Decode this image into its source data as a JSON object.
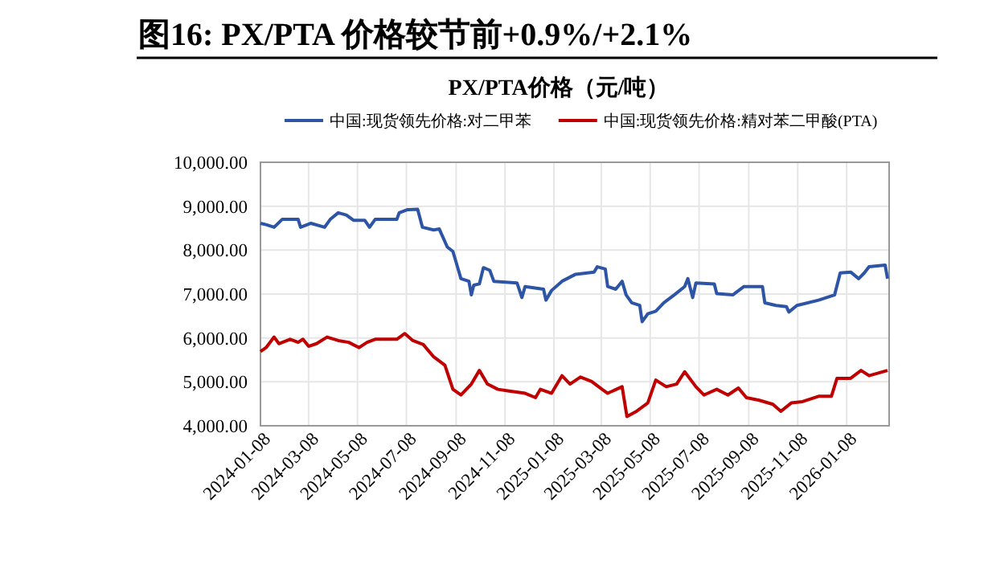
{
  "chart_data": {
    "type": "line",
    "title": "图16:  PX/PTA 价格较节前+0.9%/+2.1%",
    "subtitle": "PX/PTA价格（元/吨）",
    "xlim": [
      "2024-01-08",
      "2026-03-02"
    ],
    "xticks": [
      "2024-01-08",
      "2024-03-08",
      "2024-05-08",
      "2024-07-08",
      "2024-09-08",
      "2024-11-08",
      "2025-01-08",
      "2025-03-08",
      "2025-05-08",
      "2025-07-08",
      "2025-09-08",
      "2025-11-08",
      "2026-01-08"
    ],
    "ylim": [
      4000,
      10000
    ],
    "yticks": [
      {
        "value": 4000,
        "label": "4,000.00"
      },
      {
        "value": 5000,
        "label": "5,000.00"
      },
      {
        "value": 6000,
        "label": "6,000.00"
      },
      {
        "value": 7000,
        "label": "7,000.00"
      },
      {
        "value": 8000,
        "label": "8,000.00"
      },
      {
        "value": 9000,
        "label": "9,000.00"
      },
      {
        "value": 10000,
        "label": "10,000.00"
      }
    ],
    "grid": true,
    "legend": "top",
    "line_style": "solid",
    "marker": "none",
    "series": [
      {
        "name": "中国:现货领先价格:对二甲苯",
        "color": "#2e55a5",
        "x": [
          "2024-01-08",
          "2024-01-15",
          "2024-01-25",
          "2024-02-04",
          "2024-02-24",
          "2024-02-27",
          "2024-03-11",
          "2024-03-28",
          "2024-04-04",
          "2024-04-14",
          "2024-04-24",
          "2024-05-03",
          "2024-05-17",
          "2024-05-23",
          "2024-05-30",
          "2024-06-26",
          "2024-06-29",
          "2024-07-09",
          "2024-07-22",
          "2024-07-28",
          "2024-08-11",
          "2024-08-18",
          "2024-08-28",
          "2024-09-04",
          "2024-09-10",
          "2024-09-14",
          "2024-09-24",
          "2024-09-27",
          "2024-09-30",
          "2024-10-07",
          "2024-10-12",
          "2024-10-20",
          "2024-10-25",
          "2024-11-23",
          "2024-11-29",
          "2024-12-03",
          "2024-12-26",
          "2024-12-29",
          "2025-01-05",
          "2025-01-18",
          "2025-02-04",
          "2025-02-27",
          "2025-03-03",
          "2025-03-13",
          "2025-03-16",
          "2025-03-26",
          "2025-04-03",
          "2025-04-08",
          "2025-04-15",
          "2025-04-25",
          "2025-04-28",
          "2025-05-05",
          "2025-05-15",
          "2025-05-25",
          "2025-06-07",
          "2025-06-20",
          "2025-06-24",
          "2025-06-30",
          "2025-07-04",
          "2025-07-27",
          "2025-07-30",
          "2025-08-19",
          "2025-09-02",
          "2025-09-25",
          "2025-09-28",
          "2025-10-12",
          "2025-10-25",
          "2025-10-28",
          "2025-11-07",
          "2025-12-04",
          "2025-12-24",
          "2025-12-31",
          "2026-01-13",
          "2026-01-23",
          "2026-01-30",
          "2026-02-05",
          "2026-02-25",
          "2026-02-28"
        ],
        "values": [
          8610,
          8580,
          8520,
          8700,
          8700,
          8520,
          8610,
          8520,
          8700,
          8850,
          8800,
          8680,
          8680,
          8520,
          8700,
          8700,
          8850,
          8920,
          8930,
          8520,
          8460,
          8480,
          8070,
          7970,
          7600,
          7350,
          7290,
          6980,
          7200,
          7230,
          7600,
          7540,
          7290,
          7250,
          6920,
          7170,
          7110,
          6860,
          7080,
          7290,
          7450,
          7500,
          7620,
          7570,
          7170,
          7110,
          7290,
          6980,
          6800,
          6740,
          6370,
          6550,
          6610,
          6800,
          6980,
          7170,
          7350,
          6920,
          7250,
          7230,
          7010,
          6980,
          7170,
          7170,
          6800,
          6740,
          6710,
          6590,
          6740,
          6860,
          6980,
          7480,
          7500,
          7350,
          7480,
          7620,
          7660,
          7350
        ]
      },
      {
        "name": "中国:现货领先价格:精对苯二甲酸(PTA)",
        "color": "#c00000",
        "x": [
          "2024-01-08",
          "2024-01-15",
          "2024-01-25",
          "2024-01-31",
          "2024-02-14",
          "2024-02-24",
          "2024-03-01",
          "2024-03-08",
          "2024-03-18",
          "2024-03-31",
          "2024-04-14",
          "2024-04-27",
          "2024-05-10",
          "2024-05-20",
          "2024-05-30",
          "2024-06-26",
          "2024-07-06",
          "2024-07-16",
          "2024-07-29",
          "2024-08-11",
          "2024-08-25",
          "2024-09-04",
          "2024-09-14",
          "2024-09-27",
          "2024-10-07",
          "2024-10-17",
          "2024-10-30",
          "2024-11-13",
          "2024-12-03",
          "2024-12-16",
          "2024-12-22",
          "2025-01-05",
          "2025-01-18",
          "2025-01-28",
          "2025-02-10",
          "2025-02-24",
          "2025-03-09",
          "2025-03-16",
          "2025-04-03",
          "2025-04-09",
          "2025-04-21",
          "2025-05-05",
          "2025-05-15",
          "2025-05-28",
          "2025-06-10",
          "2025-06-20",
          "2025-07-04",
          "2025-07-14",
          "2025-07-30",
          "2025-08-13",
          "2025-08-26",
          "2025-09-05",
          "2025-09-21",
          "2025-10-08",
          "2025-10-18",
          "2025-10-31",
          "2025-11-14",
          "2025-12-04",
          "2025-12-20",
          "2025-12-27",
          "2026-01-13",
          "2026-01-26",
          "2026-02-05",
          "2026-02-28"
        ],
        "values": [
          5690,
          5780,
          6020,
          5870,
          5970,
          5900,
          5970,
          5810,
          5870,
          6020,
          5940,
          5900,
          5780,
          5900,
          5970,
          5970,
          6100,
          5940,
          5850,
          5570,
          5380,
          4830,
          4700,
          4950,
          5260,
          4950,
          4830,
          4790,
          4740,
          4640,
          4830,
          4740,
          5140,
          4950,
          5110,
          5010,
          4830,
          4740,
          4890,
          4210,
          4330,
          4520,
          5040,
          4890,
          4950,
          5230,
          4890,
          4700,
          4830,
          4700,
          4860,
          4640,
          4580,
          4490,
          4330,
          4520,
          4550,
          4670,
          4670,
          5080,
          5080,
          5260,
          5140,
          5260
        ]
      }
    ]
  }
}
